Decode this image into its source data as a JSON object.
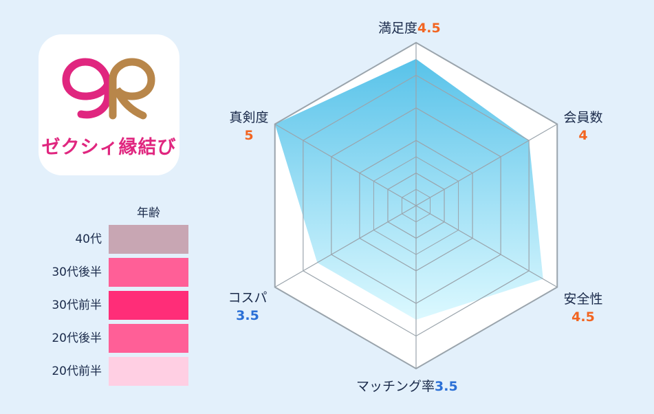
{
  "app": {
    "name": "ゼクシィ縁結び",
    "logo_colors": {
      "pink": "#e0267f",
      "gold": "#b8864a"
    }
  },
  "age_legend": {
    "title": "年齢",
    "rows": [
      {
        "label": "40代",
        "color": "#c8a6b3"
      },
      {
        "label": "30代後半",
        "color": "#ff5f97"
      },
      {
        "label": "30代前半",
        "color": "#ff2d78"
      },
      {
        "label": "20代後半",
        "color": "#ff5f97"
      },
      {
        "label": "20代前半",
        "color": "#ffcfe3"
      }
    ]
  },
  "chart_data": {
    "type": "radar",
    "max": 5,
    "rings": 5,
    "axes": [
      {
        "label": "満足度",
        "value": 4.5,
        "display": "4.5"
      },
      {
        "label": "会員数",
        "value": 4,
        "display": "4"
      },
      {
        "label": "安全性",
        "value": 4.5,
        "display": "4.5"
      },
      {
        "label": "マッチング率",
        "value": 3.5,
        "display": "3.5"
      },
      {
        "label": "コスパ",
        "value": 3.5,
        "display": "3.5"
      },
      {
        "label": "真剣度",
        "value": 5,
        "display": "5"
      }
    ],
    "colors": {
      "fill_top": "#4fbfe8",
      "fill_bottom": "#d8f8ff",
      "grid": "#9aa4ac",
      "value_high": "#f26522",
      "value_mid": "#2a6fd6"
    }
  }
}
